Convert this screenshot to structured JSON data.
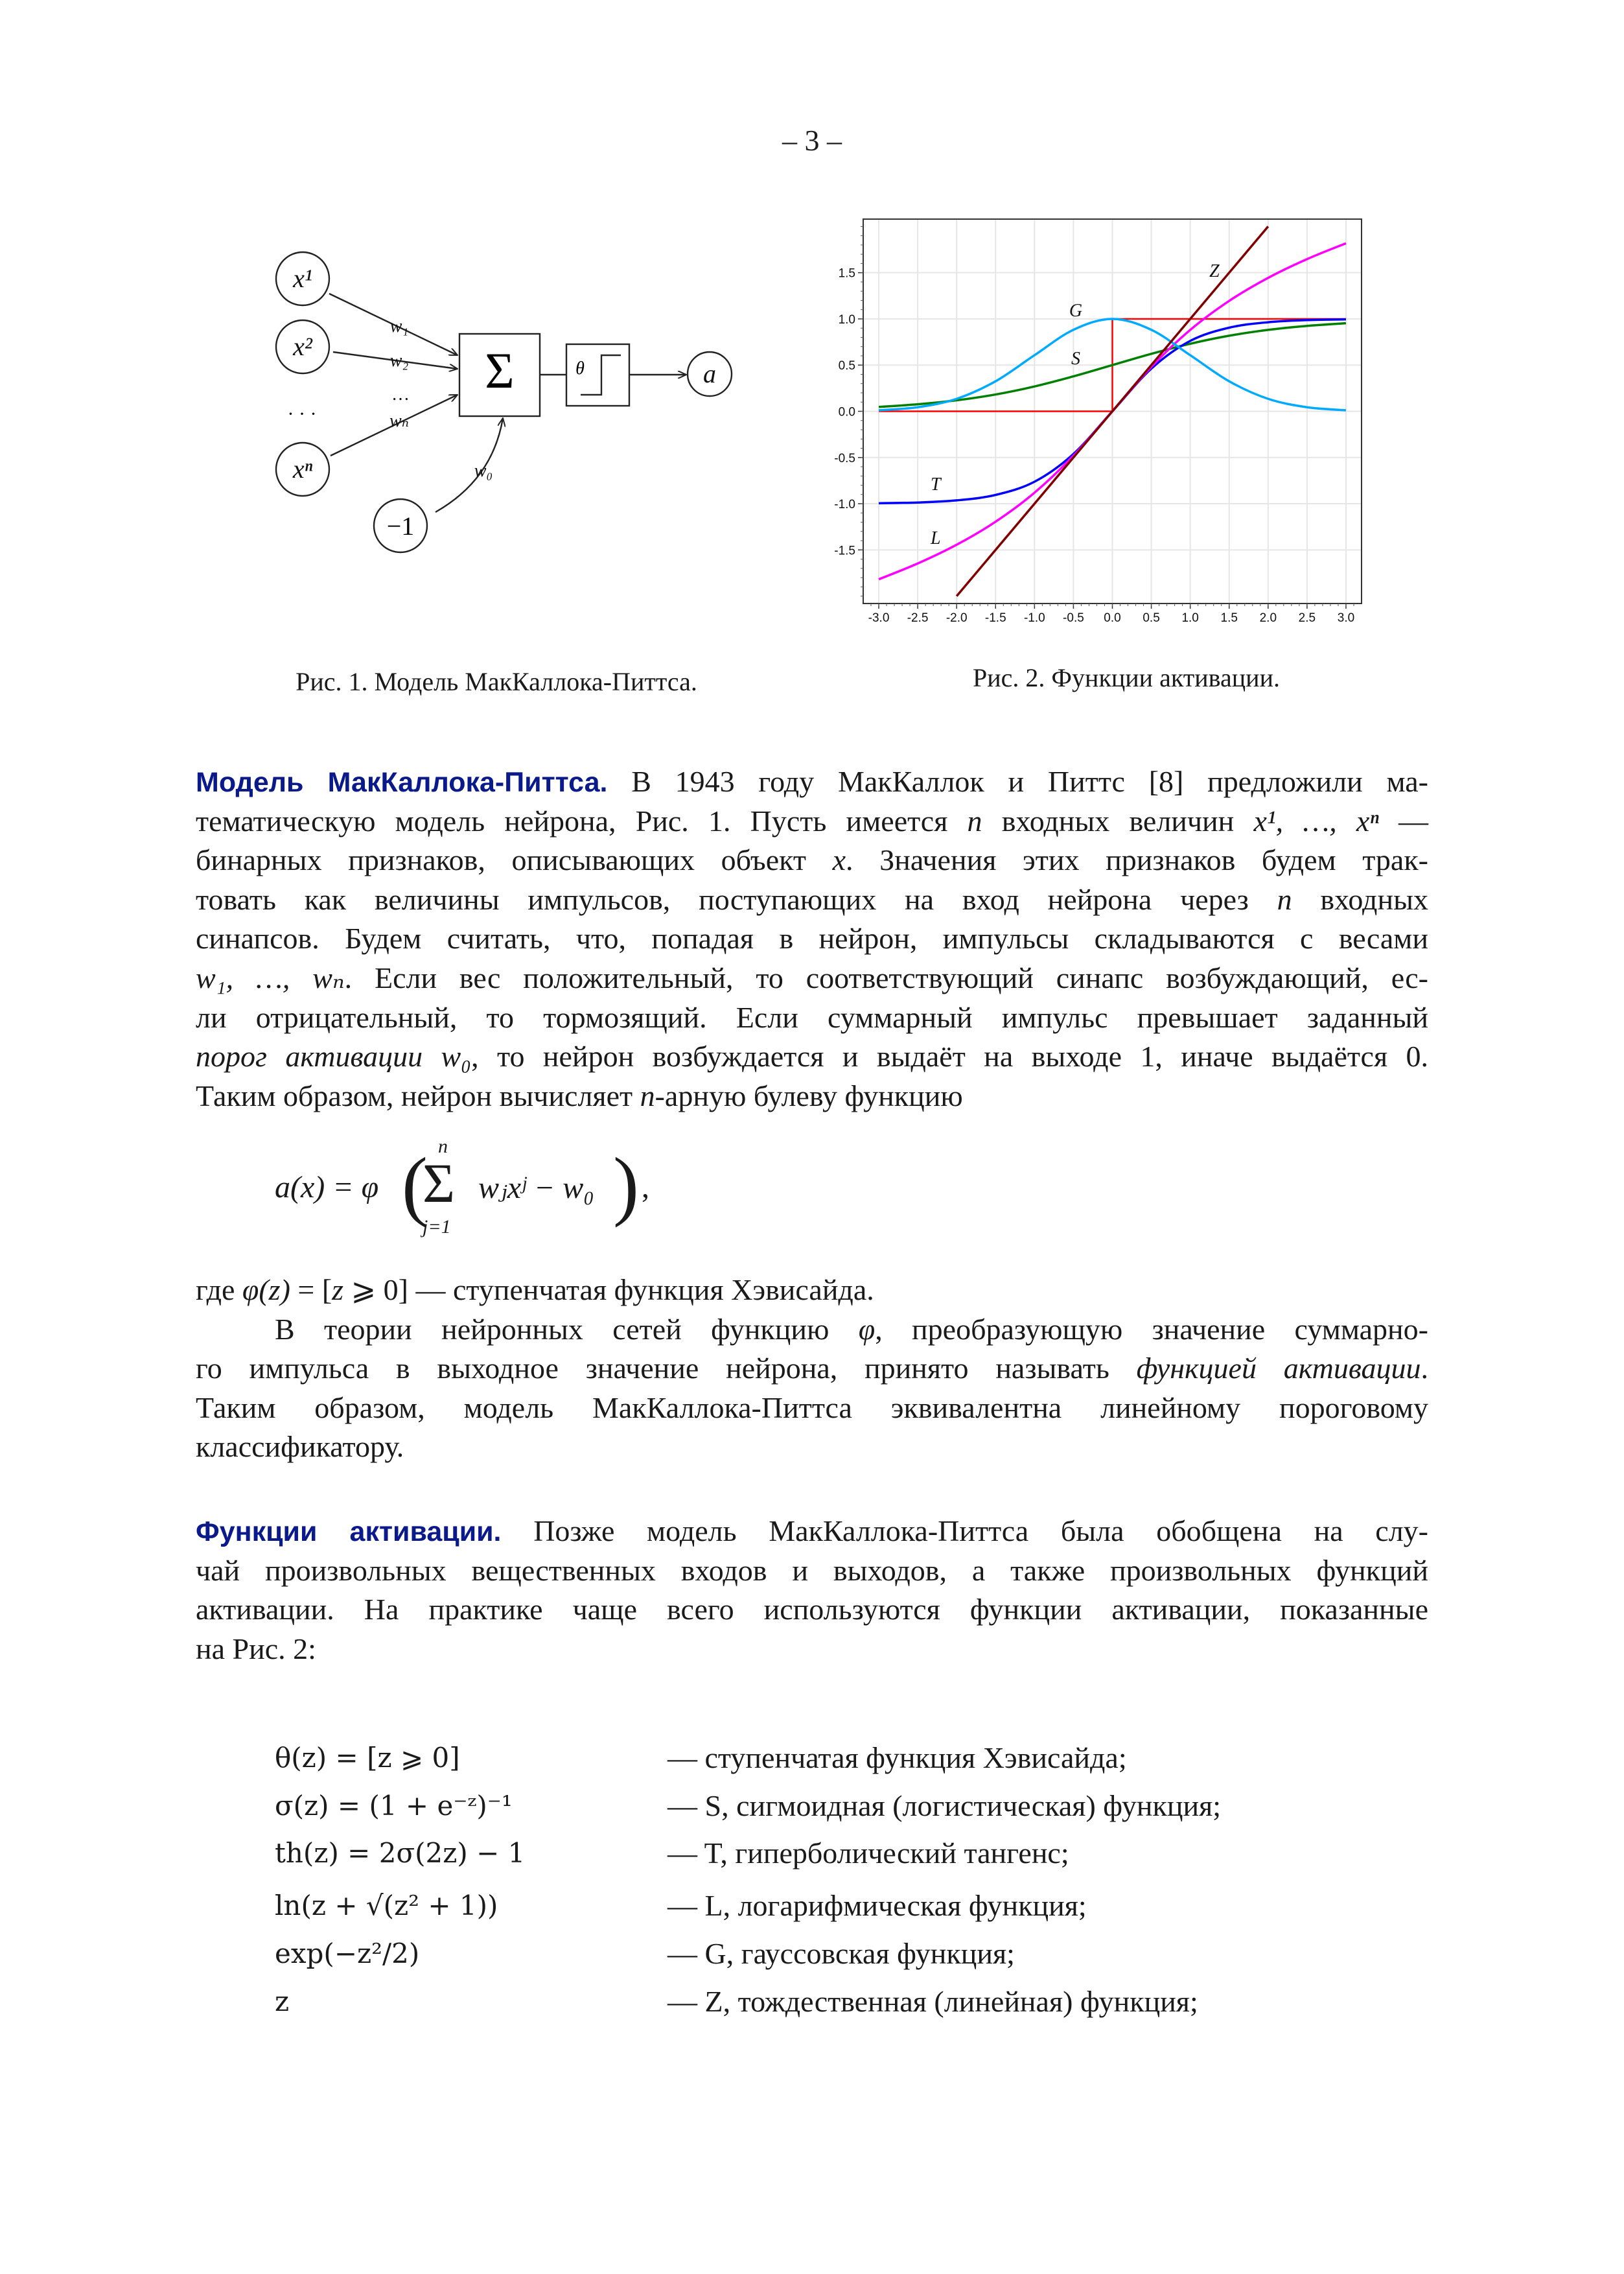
{
  "page_number": "– 3 –",
  "figure1": {
    "caption": "Рис. 1. Модель МакКаллока-Питтса.",
    "inputs": [
      "x¹",
      "x²",
      "xⁿ"
    ],
    "ellipsis": "· · ·",
    "weights": [
      "w₁",
      "w₂",
      "…",
      "wₙ"
    ],
    "bias_input": "−1",
    "bias_weight": "w₀",
    "sum_symbol": "Σ",
    "threshold_symbol": "θ",
    "output": "a"
  },
  "figure2": {
    "caption": "Рис. 2. Функции активации."
  },
  "chart_data": {
    "type": "line",
    "title": "",
    "xlabel": "",
    "ylabel": "",
    "xlim": [
      -3.2,
      3.2
    ],
    "ylim": [
      -2.08,
      2.08
    ],
    "grid": true,
    "x_ticks": [
      "-3.0",
      "-2.5",
      "-2.0",
      "-1.5",
      "-1.0",
      "-0.5",
      "0.0",
      "0.5",
      "1.0",
      "1.5",
      "2.0",
      "2.5",
      "3.0"
    ],
    "y_ticks": [
      "-1.5",
      "-1.0",
      "-0.5",
      "0.0",
      "0.5",
      "1.0",
      "1.5"
    ],
    "series": [
      {
        "name": "θ",
        "label": "",
        "color": "#ff0000",
        "step": true,
        "x": [
          -3,
          0,
          0,
          3
        ],
        "y": [
          0,
          0,
          1,
          1
        ]
      },
      {
        "name": "S",
        "label": "S",
        "color": "#008000",
        "x": [
          -3,
          -2.5,
          -2,
          -1.5,
          -1,
          -0.5,
          0,
          0.5,
          1,
          1.5,
          2,
          2.5,
          3
        ],
        "y": [
          0.047,
          0.076,
          0.119,
          0.182,
          0.269,
          0.378,
          0.5,
          0.622,
          0.731,
          0.818,
          0.881,
          0.924,
          0.953
        ],
        "label_at": [
          -0.47,
          0.57
        ]
      },
      {
        "name": "T",
        "label": "T",
        "color": "#0000ff",
        "x": [
          -3,
          -2.5,
          -2,
          -1.5,
          -1,
          -0.5,
          0,
          0.5,
          1,
          1.5,
          2,
          2.5,
          3
        ],
        "y": [
          -0.995,
          -0.987,
          -0.964,
          -0.905,
          -0.762,
          -0.462,
          0,
          0.462,
          0.762,
          0.905,
          0.964,
          0.987,
          0.995
        ],
        "label_at": [
          -2.27,
          -0.79
        ]
      },
      {
        "name": "L",
        "label": "L",
        "color": "#ff00ff",
        "x": [
          -3,
          -2.5,
          -2,
          -1.5,
          -1,
          -0.5,
          0,
          0.5,
          1,
          1.5,
          2,
          2.5,
          3
        ],
        "y": [
          -1.818,
          -1.647,
          -1.444,
          -1.195,
          -0.881,
          -0.481,
          0,
          0.481,
          0.881,
          1.195,
          1.444,
          1.647,
          1.818
        ],
        "label_at": [
          -2.27,
          -1.37
        ]
      },
      {
        "name": "G",
        "label": "G",
        "color": "#00aaff",
        "x": [
          -3,
          -2.5,
          -2,
          -1.5,
          -1,
          -0.5,
          0,
          0.5,
          1,
          1.5,
          2,
          2.5,
          3
        ],
        "y": [
          0.011,
          0.044,
          0.135,
          0.325,
          0.607,
          0.882,
          1,
          0.882,
          0.607,
          0.325,
          0.135,
          0.044,
          0.011
        ],
        "label_at": [
          -0.47,
          1.09
        ]
      },
      {
        "name": "Z",
        "label": "Z",
        "color": "#800000",
        "x": [
          -2,
          2
        ],
        "y": [
          -2,
          2
        ],
        "label_at": [
          1.31,
          1.52
        ]
      }
    ]
  },
  "section1": {
    "heading": "Модель МакКаллока-Питтса.",
    "lines": [
      [
        {
          "t": " В 1943 году МакКаллок и Питтс [8] предложили ма-"
        }
      ],
      [
        {
          "t": "тематическую модель нейрона, Рис. 1. Пусть имеется "
        },
        {
          "t": "n",
          "i": true
        },
        {
          "t": " входных величин "
        },
        {
          "t": "x¹, …, xⁿ",
          "i": true
        },
        {
          "t": " —"
        }
      ],
      [
        {
          "t": "бинарных признаков, описывающих объект "
        },
        {
          "t": "x",
          "i": true
        },
        {
          "t": ". Значения этих признаков будем трак-"
        }
      ],
      [
        {
          "t": "товать как величины импульсов, поступающих на вход нейрона через "
        },
        {
          "t": "n",
          "i": true
        },
        {
          "t": " входных"
        }
      ],
      [
        {
          "t": "синапсов. Будем считать, что, попадая в нейрон, импульсы складываются с весами"
        }
      ],
      [
        {
          "t": "w₁, …, wₙ",
          "i": true
        },
        {
          "t": ". Если вес положительный, то соответствующий синапс возбуждающий, ес-"
        }
      ],
      [
        {
          "t": "ли отрицательный, то тормозящий. Если суммарный импульс превышает заданный"
        }
      ],
      [
        {
          "t": "порог активации w₀",
          "i": true
        },
        {
          "t": ", то нейрон возбуждается и выдаёт на выходе 1, иначе выдаётся 0."
        }
      ],
      [
        {
          "t": "Таким образом, нейрон вычисляет "
        },
        {
          "t": "n",
          "i": true
        },
        {
          "t": "-арную булеву функцию"
        }
      ]
    ],
    "equation": {
      "lhs": "a(x) = φ",
      "sum_top": "n",
      "sum_bottom": "j=1",
      "body": "wⱼxʲ − w₀",
      "tail": ","
    }
  },
  "section2": {
    "lines": [
      [
        {
          "t": "где "
        },
        {
          "t": "φ(z)",
          "i": true
        },
        {
          "t": " = ["
        },
        {
          "t": "z",
          "i": true
        },
        {
          "t": " ⩾ 0] — ступенчатая функция Хэвисайда."
        }
      ],
      [
        {
          "t": "В теории нейронных сетей функцию "
        },
        {
          "t": "φ",
          "i": true
        },
        {
          "t": ", преобразующую значение суммарно-"
        }
      ],
      [
        {
          "t": "го импульса в выходное значение нейрона, принято называть "
        },
        {
          "t": "функцией активации",
          "i": true
        },
        {
          "t": "."
        }
      ],
      [
        {
          "t": "Таким образом, модель МакКаллока-Питтса эквивалентна линейному пороговому"
        }
      ],
      [
        {
          "t": "классификатору."
        }
      ]
    ]
  },
  "section3": {
    "heading": "Функции активации.",
    "lines": [
      [
        {
          "t": " Позже модель МакКаллока-Питтса была обобщена на слу-"
        }
      ],
      [
        {
          "t": "чай произвольных вещественных входов и выходов, а также произвольных функций"
        }
      ],
      [
        {
          "t": "активации. На практике чаще всего используются функции активации, показанные"
        }
      ],
      [
        {
          "t": "на Рис. 2:"
        }
      ]
    ]
  },
  "functions": [
    {
      "formula": "θ(z) = [z ⩾ 0]",
      "desc": "— ступенчатая функция Хэвисайда;"
    },
    {
      "formula": "σ(z) = (1 + e⁻ᶻ)⁻¹",
      "desc": "— S, сигмоидная (логистическая) функция;"
    },
    {
      "formula": "th(z) = 2σ(2z) − 1",
      "desc": "— T, гиперболический тангенс;"
    },
    {
      "formula": "ln(z + √(z² + 1))",
      "desc": "— L, логарифмическая функция;"
    },
    {
      "formula": "exp(−z²/2)",
      "desc": "— G, гауссовская функция;"
    },
    {
      "formula": "z",
      "desc": "— Z, тождественная (линейная) функция;"
    }
  ]
}
